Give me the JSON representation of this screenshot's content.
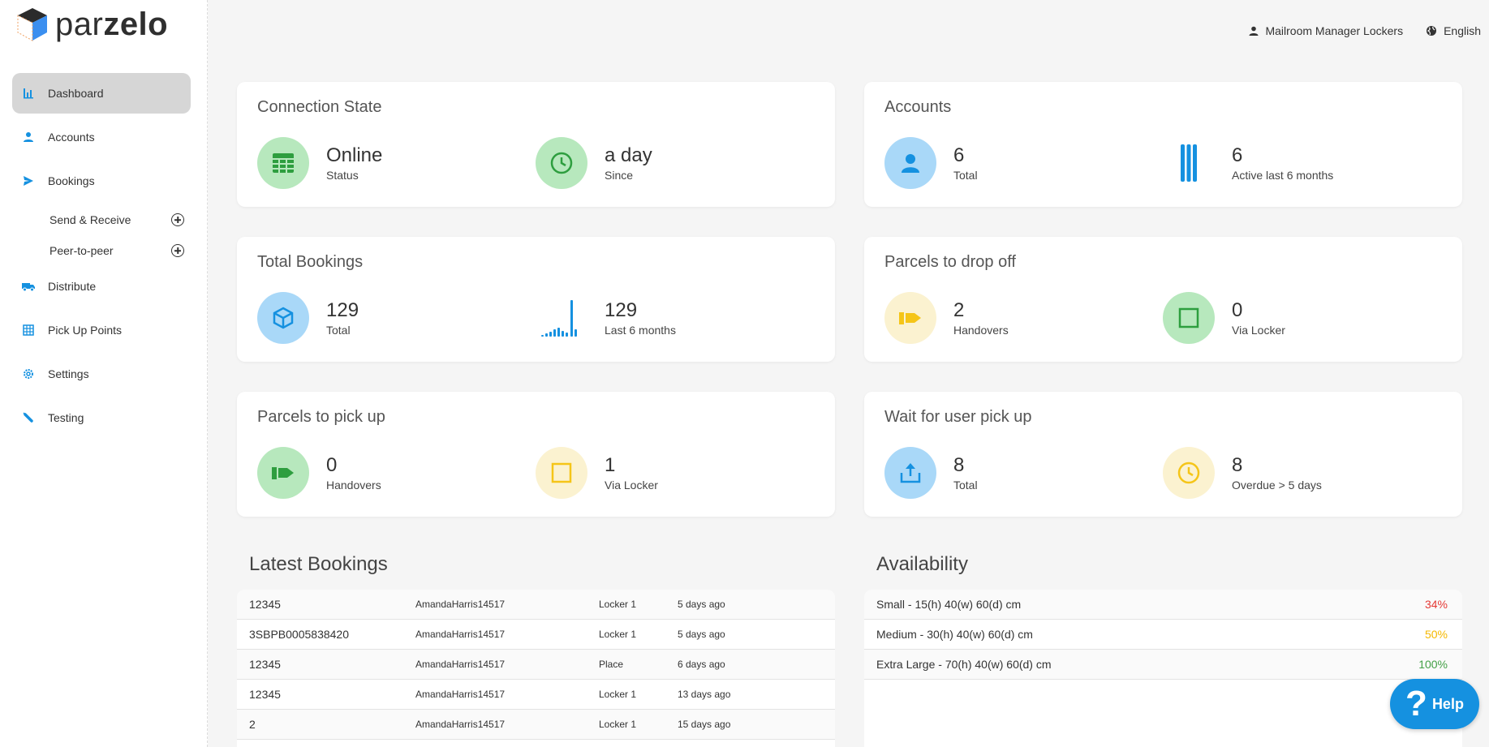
{
  "brand": {
    "name_part1": "par",
    "name_part2": "zelo"
  },
  "header": {
    "user_label": "Mailroom Manager Lockers",
    "language_label": "English"
  },
  "sidebar": {
    "items": [
      {
        "label": "Dashboard",
        "icon": "bar-chart-icon"
      },
      {
        "label": "Accounts",
        "icon": "person-icon"
      },
      {
        "label": "Bookings",
        "icon": "send-icon"
      },
      {
        "label": "Distribute",
        "icon": "truck-icon"
      },
      {
        "label": "Pick Up Points",
        "icon": "grid-icon"
      },
      {
        "label": "Settings",
        "icon": "gear-icon"
      },
      {
        "label": "Testing",
        "icon": "pipette-icon"
      }
    ],
    "sub_items": [
      {
        "label": "Send & Receive"
      },
      {
        "label": "Peer-to-peer"
      }
    ]
  },
  "cards": {
    "connection": {
      "title": "Connection State",
      "stats": [
        {
          "value": "Online",
          "label": "Status"
        },
        {
          "value": "a day",
          "label": "Since"
        }
      ]
    },
    "accounts": {
      "title": "Accounts",
      "stats": [
        {
          "value": "6",
          "label": "Total"
        },
        {
          "value": "6",
          "label": "Active last 6 months"
        }
      ]
    },
    "total_bookings": {
      "title": "Total Bookings",
      "stats": [
        {
          "value": "129",
          "label": "Total"
        },
        {
          "value": "129",
          "label": "Last 6 months"
        }
      ]
    },
    "drop_off": {
      "title": "Parcels to drop off",
      "stats": [
        {
          "value": "2",
          "label": "Handovers"
        },
        {
          "value": "0",
          "label": "Via Locker"
        }
      ]
    },
    "pick_up": {
      "title": "Parcels to pick up",
      "stats": [
        {
          "value": "0",
          "label": "Handovers"
        },
        {
          "value": "1",
          "label": "Via Locker"
        }
      ]
    },
    "wait_pickup": {
      "title": "Wait for user pick up",
      "stats": [
        {
          "value": "8",
          "label": "Total"
        },
        {
          "value": "8",
          "label": "Overdue > 5 days"
        }
      ]
    }
  },
  "latest_bookings": {
    "title": "Latest Bookings",
    "rows": [
      {
        "id": "12345",
        "user": "AmandaHarris14517",
        "place": "Locker 1",
        "time": "5 days ago"
      },
      {
        "id": "3SBPB0005838420",
        "user": "AmandaHarris14517",
        "place": "Locker 1",
        "time": "5 days ago"
      },
      {
        "id": "12345",
        "user": "AmandaHarris14517",
        "place": "Place",
        "time": "6 days ago"
      },
      {
        "id": "12345",
        "user": "AmandaHarris14517",
        "place": "Locker 1",
        "time": "13 days ago"
      },
      {
        "id": "2",
        "user": "AmandaHarris14517",
        "place": "Locker 1",
        "time": "15 days ago"
      }
    ]
  },
  "availability": {
    "title": "Availability",
    "rows": [
      {
        "label": "Small - 15(h) 40(w) 60(d) cm",
        "value": "34%",
        "color": "#e53935"
      },
      {
        "label": "Medium - 30(h) 40(w) 60(d) cm",
        "value": "50%",
        "color": "#f5b800"
      },
      {
        "label": "Extra Large - 70(h) 40(w) 60(d) cm",
        "value": "100%",
        "color": "#43a047"
      }
    ]
  },
  "help": {
    "label": "Help"
  },
  "colors": {
    "accent_blue": "#1591e0",
    "green_icon": "#2e9e3f",
    "yellow_icon": "#f5c518"
  }
}
